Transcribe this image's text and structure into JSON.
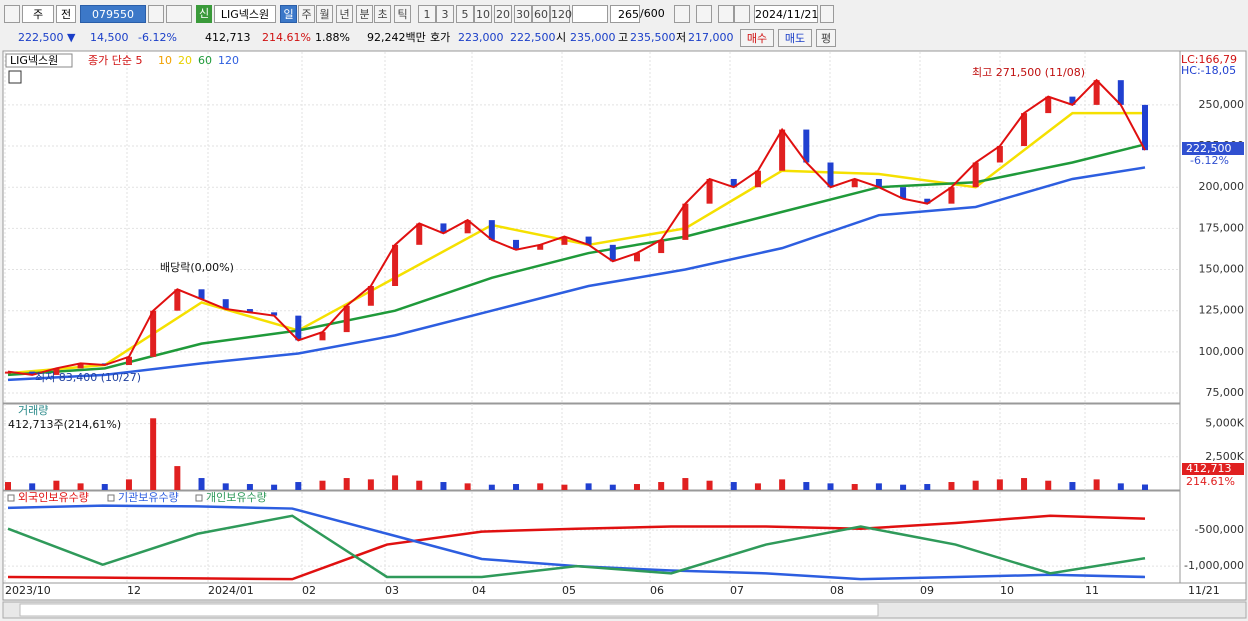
{
  "toolbar": {
    "period": "주",
    "scope": "전",
    "code": "079550",
    "badge": "신",
    "name": "LIG넥스원",
    "intervals": [
      "일",
      "주",
      "월",
      "년",
      "분",
      "초",
      "틱"
    ],
    "multipliers": [
      "1",
      "3",
      "5",
      "10",
      "20",
      "30",
      "60",
      "120"
    ],
    "count": "265",
    "max": "/600",
    "date": "2024/11/21"
  },
  "quote": {
    "price": "222,500 ▼",
    "change": "14,500",
    "change_pct": "-6.12%",
    "volume": "412,713",
    "volume_ratio": "214.61%",
    "turnover_pct": "1.88%",
    "amount": "92,242백만",
    "bid_label": "호가",
    "ask": "223,000",
    "bid": "222,500",
    "open_label": "시",
    "open": "235,000",
    "high_label": "고",
    "high": "235,500",
    "low_label": "저",
    "low": "217,000",
    "buy": "매수",
    "sell": "매도",
    "eval": "평"
  },
  "price_panel": {
    "legend": {
      "name": "LIG넥스원",
      "ma_label": "종가 단순 5",
      "periods": [
        "10",
        "20",
        "60",
        "120"
      ]
    },
    "high_note": "최고 271,500 (11/08)",
    "low_note": "최저 83,400 (10/27)",
    "dividend_note": "배당락(0,00%)",
    "lc": "LC:166,79",
    "hc": "HC:-18,05",
    "last_label": "222,500",
    "last_pct": "-6.12%",
    "ylim": [
      69550,
      281500
    ],
    "yticks": [
      {
        "value": 75000,
        "label": "75,000"
      },
      {
        "value": 100000,
        "label": "100,000"
      },
      {
        "value": 125000,
        "label": "125,000"
      },
      {
        "value": 150000,
        "label": "150,000"
      },
      {
        "value": 175000,
        "label": "175,000"
      },
      {
        "value": 200000,
        "label": "200,000"
      },
      {
        "value": 225000,
        "label": "225,000"
      },
      {
        "value": 250000,
        "label": "250,000"
      }
    ],
    "close": [
      88000,
      86000,
      90000,
      93000,
      92000,
      97000,
      125000,
      138000,
      132000,
      126000,
      124000,
      122000,
      107000,
      112000,
      128000,
      140000,
      165000,
      178000,
      172000,
      180000,
      168000,
      162000,
      165000,
      170000,
      165000,
      155000,
      160000,
      168000,
      190000,
      205000,
      200000,
      210000,
      235000,
      215000,
      200000,
      205000,
      200000,
      193000,
      190000,
      200000,
      215000,
      225000,
      245000,
      255000,
      250000,
      265000,
      250000,
      222500
    ],
    "ma_x": [
      0,
      4,
      8,
      12,
      16,
      20,
      24,
      28,
      32,
      36,
      40,
      44,
      47
    ],
    "ma": [
      {
        "color": "#f5e000",
        "values": [
          87000,
          92000,
          130000,
          113000,
          145000,
          177000,
          165000,
          175000,
          210000,
          208000,
          200000,
          245000,
          245000
        ]
      },
      {
        "color": "#1f9a3a",
        "values": [
          86000,
          90000,
          105000,
          113000,
          125000,
          145000,
          160000,
          170000,
          185000,
          200000,
          203000,
          215000,
          226000
        ]
      },
      {
        "color": "#2d5ee0",
        "values": [
          83000,
          86000,
          93000,
          99000,
          110000,
          125000,
          140000,
          150000,
          163000,
          183000,
          188000,
          205000,
          212000
        ]
      }
    ]
  },
  "volume_panel": {
    "title": "거래량",
    "note": "412,713주(214,61%)",
    "last_label": "412,713",
    "last_pct": "214.61%",
    "ylim": [
      0,
      6400
    ],
    "yticks": [
      {
        "value": 2500,
        "label": "2,500K"
      },
      {
        "value": 5000,
        "label": "5,000K"
      }
    ],
    "values": [
      600,
      500,
      700,
      500,
      450,
      800,
      5400,
      1800,
      900,
      500,
      450,
      400,
      600,
      700,
      900,
      800,
      1100,
      700,
      600,
      500,
      400,
      450,
      500,
      400,
      500,
      400,
      450,
      600,
      900,
      700,
      600,
      500,
      800,
      600,
      500,
      450,
      500,
      400,
      450,
      600,
      700,
      800,
      900,
      700,
      600,
      800,
      500,
      412.713
    ]
  },
  "investor_panel": {
    "ylim": [
      -1220000,
      30000
    ],
    "yticks": [
      {
        "value": -1000000,
        "label": "-1,000,000"
      },
      {
        "value": -500000,
        "label": "-500,000"
      }
    ],
    "series": [
      {
        "name": "외국인보유수량",
        "color": "#e01010",
        "values": [
          -1150000,
          -1160000,
          -1170000,
          -1180000,
          -700000,
          -520000,
          -480000,
          -450000,
          -450000,
          -480000,
          -400000,
          -300000,
          -340000
        ]
      },
      {
        "name": "기관보유수량",
        "color": "#2d5ee0",
        "values": [
          -190000,
          -160000,
          -170000,
          -200000,
          -550000,
          -900000,
          -1000000,
          -1060000,
          -1100000,
          -1180000,
          -1150000,
          -1120000,
          -1150000
        ]
      },
      {
        "name": "개인보유수량",
        "color": "#2f9a5a",
        "values": [
          -480000,
          -980000,
          -550000,
          -300000,
          -1150000,
          -1150000,
          -1000000,
          -1100000,
          -700000,
          -450000,
          -700000,
          -1100000,
          -890000
        ]
      }
    ]
  },
  "x_axis": {
    "labels": [
      "2023/10",
      "12",
      "2024/01",
      "02",
      "03",
      "04",
      "05",
      "06",
      "07",
      "08",
      "09",
      "10",
      "11"
    ],
    "last": "11/21"
  }
}
